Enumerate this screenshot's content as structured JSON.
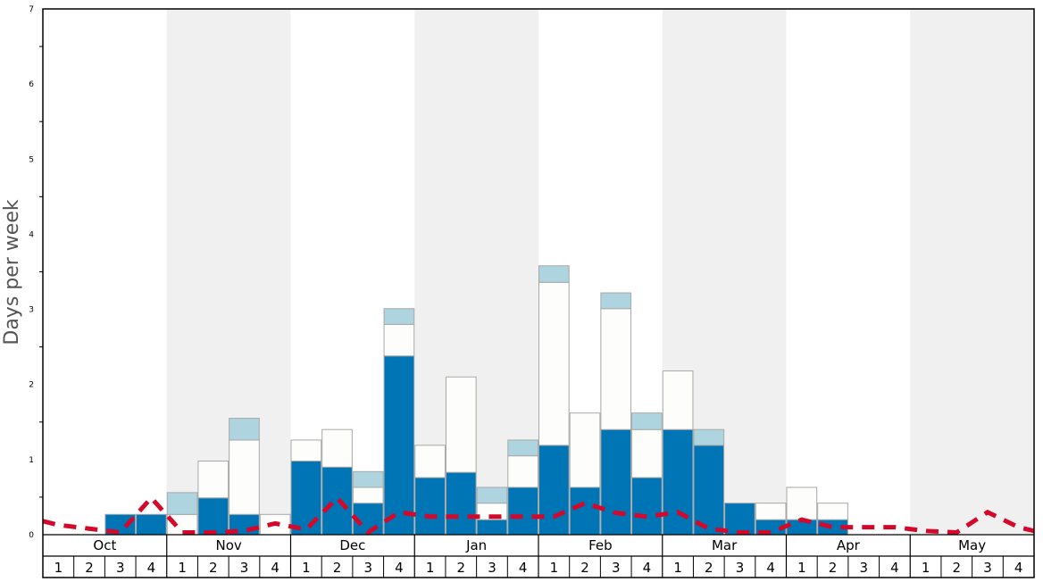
{
  "chart_data": {
    "type": "bar",
    "stacked": true,
    "title": "",
    "ylabel": "Days per week",
    "xlabel": "",
    "ylim": [
      0,
      7
    ],
    "yticks": [
      "0",
      "1",
      "2",
      "3",
      "4",
      "5",
      "6",
      "7"
    ],
    "months": [
      "Oct",
      "Nov",
      "Dec",
      "Jan",
      "Feb",
      "Mar",
      "Apr",
      "May"
    ],
    "week_labels": [
      "1",
      "2",
      "3",
      "4"
    ],
    "shaded_months": [
      "Nov",
      "Jan",
      "Mar",
      "May"
    ],
    "series": [
      {
        "name": "dark",
        "color": "#0075b5",
        "values": [
          0,
          0,
          0.27,
          0.27,
          0,
          0.49,
          0.27,
          0,
          0.98,
          0.9,
          0.42,
          2.38,
          0.76,
          0.83,
          0.2,
          0.63,
          1.19,
          0.63,
          1.4,
          0.76,
          1.4,
          1.19,
          0.42,
          0.2,
          0.2,
          0.2,
          0,
          0,
          0,
          0,
          0,
          0
        ]
      },
      {
        "name": "white",
        "color": "#fdfdfb",
        "values": [
          0,
          0,
          0,
          0,
          0.27,
          0.49,
          0.99,
          0.27,
          0.28,
          0.5,
          0.21,
          0.42,
          0.43,
          1.27,
          0.22,
          0.42,
          2.17,
          0.99,
          1.61,
          0.64,
          0.78,
          0,
          0,
          0.22,
          0.43,
          0.22,
          0,
          0,
          0,
          0,
          0,
          0
        ]
      },
      {
        "name": "light",
        "color": "#aed4e0",
        "values": [
          0,
          0,
          0,
          0,
          0.29,
          0,
          0.29,
          0,
          0,
          0,
          0.21,
          0.21,
          0,
          0,
          0.21,
          0.21,
          0.22,
          0,
          0.21,
          0.22,
          0,
          0.21,
          0,
          0,
          0,
          0,
          0,
          0,
          0,
          0,
          0,
          0
        ]
      }
    ],
    "average_line": {
      "color": "#d4082a",
      "values": [
        0.13,
        0.08,
        0.03,
        0.49,
        0.03,
        0.03,
        0.05,
        0.15,
        0.07,
        0.49,
        0.03,
        0.3,
        0.24,
        0.24,
        0.24,
        0.24,
        0.24,
        0.42,
        0.29,
        0.24,
        0.3,
        0.08,
        0.03,
        0.03,
        0.2,
        0.1,
        0.1,
        0.1,
        0.05,
        0.03,
        0.3,
        0.1
      ]
    }
  }
}
